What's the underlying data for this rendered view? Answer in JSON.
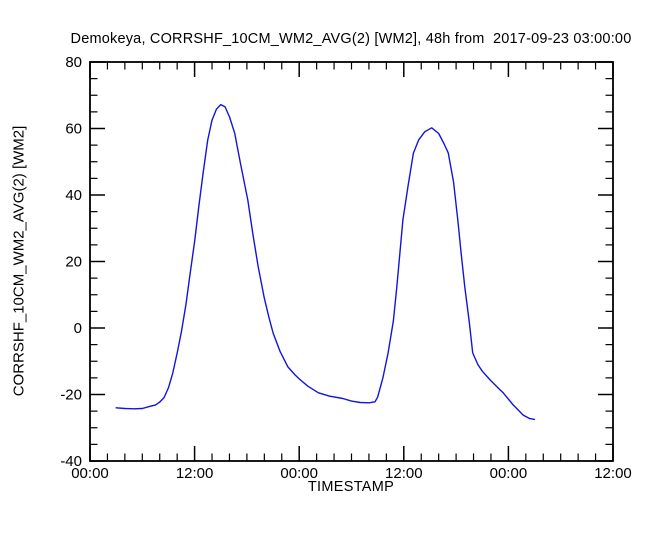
{
  "chart_data": {
    "type": "line",
    "title": "Demokeya, CORRSHF_10CM_WM2_AVG(2) [WM2], 48h from  2017-09-23 03:00:00",
    "xlabel": "TIMESTAMP",
    "ylabel": "CORRSHF_10CM_WM2_AVG(2) [WM2]",
    "x_unit_note": "hours after 2017-09-23 00:00, axis spans 2.5 days",
    "xlim": [
      0,
      60
    ],
    "ylim": [
      -40,
      80
    ],
    "x_major_ticks": [
      0,
      12,
      24,
      36,
      48,
      60
    ],
    "x_tick_labels": [
      "00:00",
      "12:00",
      "00:00",
      "12:00",
      "00:00",
      "12:00"
    ],
    "x_minor_step": 2,
    "y_major_ticks": [
      -40,
      -20,
      0,
      20,
      40,
      60,
      80
    ],
    "y_tick_labels": [
      "-40",
      "-20",
      "0",
      "20",
      "40",
      "60",
      "80"
    ],
    "y_minor_step": 5,
    "grid": false,
    "legend": "none",
    "line_color": "#1414dc",
    "axis_color": "#000000",
    "background_color": "#ffffff",
    "series": [
      {
        "name": "CORRSHF_10CM_WM2_AVG(2)",
        "points": [
          [
            3.0,
            -24.0
          ],
          [
            4.0,
            -24.2
          ],
          [
            5.0,
            -24.3
          ],
          [
            6.0,
            -24.2
          ],
          [
            7.0,
            -23.5
          ],
          [
            7.5,
            -23.2
          ],
          [
            8.0,
            -22.3
          ],
          [
            8.5,
            -20.9
          ],
          [
            9.0,
            -18.0
          ],
          [
            9.5,
            -13.5
          ],
          [
            10.0,
            -7.5
          ],
          [
            10.5,
            -1.0
          ],
          [
            11.0,
            7.0
          ],
          [
            11.5,
            16.5
          ],
          [
            12.0,
            26.0
          ],
          [
            12.5,
            37.0
          ],
          [
            13.0,
            47.0
          ],
          [
            13.5,
            56.5
          ],
          [
            14.0,
            62.5
          ],
          [
            14.5,
            65.8
          ],
          [
            15.0,
            67.2
          ],
          [
            15.5,
            66.5
          ],
          [
            16.0,
            63.5
          ],
          [
            16.6,
            58.6
          ],
          [
            17.3,
            49.0
          ],
          [
            18.1,
            38.5
          ],
          [
            18.7,
            28.0
          ],
          [
            19.3,
            18.4
          ],
          [
            20.0,
            9.0
          ],
          [
            20.5,
            3.5
          ],
          [
            21.0,
            -1.5
          ],
          [
            21.8,
            -7.0
          ],
          [
            22.7,
            -11.7
          ],
          [
            23.5,
            -14.0
          ],
          [
            24.0,
            -15.3
          ],
          [
            25.0,
            -17.5
          ],
          [
            26.2,
            -19.5
          ],
          [
            27.5,
            -20.5
          ],
          [
            29.0,
            -21.2
          ],
          [
            30.0,
            -22.0
          ],
          [
            31.0,
            -22.4
          ],
          [
            32.0,
            -22.5
          ],
          [
            32.7,
            -22.2
          ],
          [
            33.0,
            -20.8
          ],
          [
            33.6,
            -15.0
          ],
          [
            34.2,
            -7.5
          ],
          [
            34.8,
            2.0
          ],
          [
            35.2,
            12.3
          ],
          [
            35.9,
            32.5
          ],
          [
            36.5,
            43.0
          ],
          [
            37.1,
            52.6
          ],
          [
            37.7,
            56.5
          ],
          [
            38.4,
            59.0
          ],
          [
            39.2,
            60.2
          ],
          [
            40.0,
            58.5
          ],
          [
            40.6,
            55.5
          ],
          [
            41.1,
            52.6
          ],
          [
            41.7,
            44.0
          ],
          [
            42.2,
            32.5
          ],
          [
            42.6,
            22.0
          ],
          [
            43.0,
            12.3
          ],
          [
            43.5,
            2.0
          ],
          [
            43.9,
            -7.5
          ],
          [
            44.5,
            -11.0
          ],
          [
            45.0,
            -13.0
          ],
          [
            45.9,
            -15.6
          ],
          [
            47.0,
            -18.5
          ],
          [
            47.4,
            -19.5
          ],
          [
            48.5,
            -23.0
          ],
          [
            49.7,
            -26.2
          ],
          [
            50.4,
            -27.2
          ],
          [
            51.0,
            -27.5
          ]
        ]
      }
    ]
  }
}
